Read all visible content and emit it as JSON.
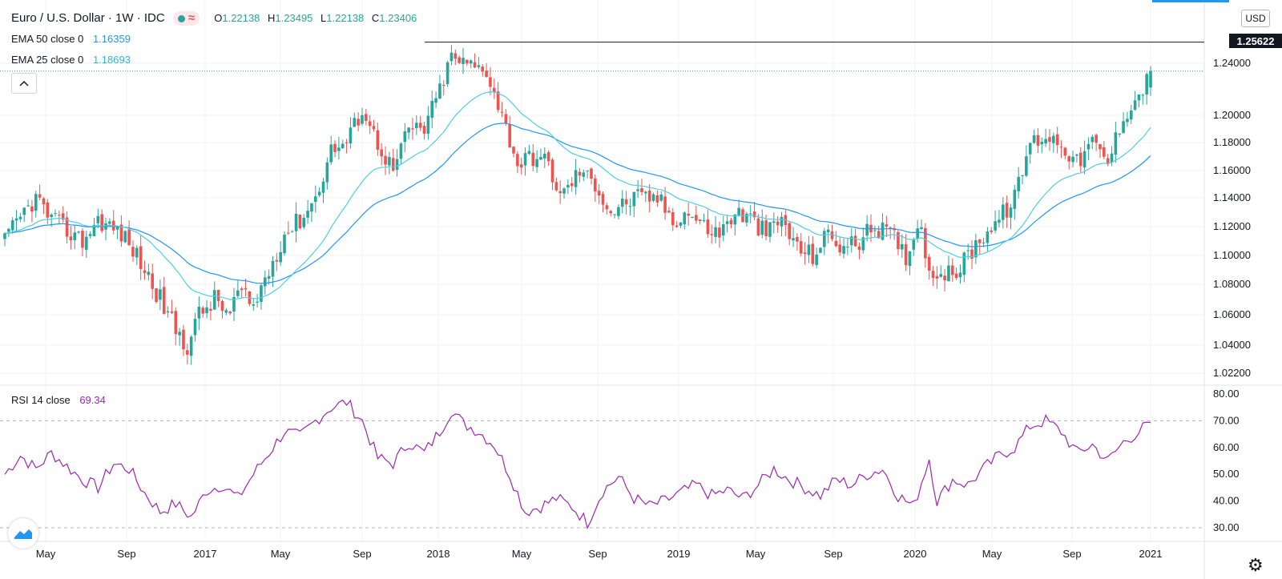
{
  "header": {
    "symbol_title": "Euro / U.S. Dollar · 1W · IDC",
    "ohlc": {
      "o_label": "O",
      "o": "1.22138",
      "h_label": "H",
      "h": "1.23495",
      "l_label": "L",
      "l": "1.22138",
      "c_label": "C",
      "c": "1.23406"
    },
    "wave_icon": "≈"
  },
  "indicators": {
    "ema50": {
      "label": "EMA 50 close 0",
      "value": "1.16359",
      "color": "#2196f3"
    },
    "ema25": {
      "label": "EMA 25 close 0",
      "value": "1.18693",
      "color": "#29b6d6"
    },
    "rsi": {
      "label": "RSI 14 close",
      "value": "69.34",
      "color": "#9c27b0"
    }
  },
  "currency_badge": "USD",
  "last_price_label": "1.25622",
  "colors": {
    "up": "#26a69a",
    "down": "#ef5350",
    "rsi": "#9c27b0",
    "ema50": "#2196f3",
    "ema25": "#4dd0e1"
  },
  "chart_data": [
    {
      "type": "candlestick",
      "title": "",
      "price_axis_ticks": [
        "1.24000",
        "1.20000",
        "1.18000",
        "1.16000",
        "1.14000",
        "1.12000",
        "1.10000",
        "1.08000",
        "1.06000",
        "1.04000",
        "1.02200"
      ],
      "time_axis_ticks": [
        "May",
        "Sep",
        "2017",
        "May",
        "Sep",
        "2018",
        "May",
        "Sep",
        "2019",
        "May",
        "Sep",
        "2020",
        "May",
        "Sep",
        "2021"
      ],
      "ylim": [
        1.015,
        1.265
      ],
      "horizontal_line": 1.25622,
      "current_price_line": 1.234,
      "close_anchors": [
        {
          "i": 0,
          "v": 1.11
        },
        {
          "i": 5,
          "v": 1.13
        },
        {
          "i": 8,
          "v": 1.14
        },
        {
          "i": 12,
          "v": 1.125
        },
        {
          "i": 20,
          "v": 1.11
        },
        {
          "i": 24,
          "v": 1.125
        },
        {
          "i": 30,
          "v": 1.115
        },
        {
          "i": 34,
          "v": 1.1
        },
        {
          "i": 40,
          "v": 1.07
        },
        {
          "i": 44,
          "v": 1.05
        },
        {
          "i": 47,
          "v": 1.04
        },
        {
          "i": 50,
          "v": 1.06
        },
        {
          "i": 54,
          "v": 1.07
        },
        {
          "i": 58,
          "v": 1.06
        },
        {
          "i": 60,
          "v": 1.075
        },
        {
          "i": 64,
          "v": 1.065
        },
        {
          "i": 68,
          "v": 1.09
        },
        {
          "i": 72,
          "v": 1.115
        },
        {
          "i": 76,
          "v": 1.125
        },
        {
          "i": 80,
          "v": 1.14
        },
        {
          "i": 84,
          "v": 1.175
        },
        {
          "i": 88,
          "v": 1.18
        },
        {
          "i": 92,
          "v": 1.205
        },
        {
          "i": 96,
          "v": 1.18
        },
        {
          "i": 100,
          "v": 1.16
        },
        {
          "i": 104,
          "v": 1.19
        },
        {
          "i": 108,
          "v": 1.19
        },
        {
          "i": 112,
          "v": 1.22
        },
        {
          "i": 115,
          "v": 1.245
        },
        {
          "i": 118,
          "v": 1.24
        },
        {
          "i": 124,
          "v": 1.235
        },
        {
          "i": 128,
          "v": 1.2
        },
        {
          "i": 132,
          "v": 1.165
        },
        {
          "i": 136,
          "v": 1.17
        },
        {
          "i": 140,
          "v": 1.165
        },
        {
          "i": 143,
          "v": 1.14
        },
        {
          "i": 148,
          "v": 1.16
        },
        {
          "i": 152,
          "v": 1.15
        },
        {
          "i": 156,
          "v": 1.13
        },
        {
          "i": 162,
          "v": 1.14
        },
        {
          "i": 168,
          "v": 1.14
        },
        {
          "i": 172,
          "v": 1.125
        },
        {
          "i": 176,
          "v": 1.13
        },
        {
          "i": 180,
          "v": 1.12
        },
        {
          "i": 184,
          "v": 1.115
        },
        {
          "i": 188,
          "v": 1.13
        },
        {
          "i": 192,
          "v": 1.125
        },
        {
          "i": 196,
          "v": 1.115
        },
        {
          "i": 200,
          "v": 1.125
        },
        {
          "i": 204,
          "v": 1.105
        },
        {
          "i": 208,
          "v": 1.1
        },
        {
          "i": 212,
          "v": 1.115
        },
        {
          "i": 216,
          "v": 1.105
        },
        {
          "i": 220,
          "v": 1.11
        },
        {
          "i": 224,
          "v": 1.12
        },
        {
          "i": 228,
          "v": 1.115
        },
        {
          "i": 232,
          "v": 1.1
        },
        {
          "i": 236,
          "v": 1.125
        },
        {
          "i": 238,
          "v": 1.085
        },
        {
          "i": 240,
          "v": 1.09
        },
        {
          "i": 244,
          "v": 1.085
        },
        {
          "i": 248,
          "v": 1.1
        },
        {
          "i": 252,
          "v": 1.115
        },
        {
          "i": 256,
          "v": 1.125
        },
        {
          "i": 260,
          "v": 1.14
        },
        {
          "i": 264,
          "v": 1.18
        },
        {
          "i": 268,
          "v": 1.185
        },
        {
          "i": 272,
          "v": 1.18
        },
        {
          "i": 276,
          "v": 1.165
        },
        {
          "i": 280,
          "v": 1.18
        },
        {
          "i": 284,
          "v": 1.165
        },
        {
          "i": 288,
          "v": 1.2
        },
        {
          "i": 292,
          "v": 1.215
        },
        {
          "i": 295,
          "v": 1.234
        }
      ],
      "bar_count": 296
    },
    {
      "type": "line",
      "title": "",
      "ylim": [
        25,
        82
      ],
      "y_ticks": [
        "80.00",
        "70.00",
        "60.00",
        "50.00",
        "40.00",
        "30.00"
      ],
      "bands": [
        70,
        30
      ],
      "rsi_anchors": [
        {
          "i": 0,
          "v": 50
        },
        {
          "i": 4,
          "v": 57
        },
        {
          "i": 8,
          "v": 52
        },
        {
          "i": 12,
          "v": 58
        },
        {
          "i": 16,
          "v": 53
        },
        {
          "i": 20,
          "v": 48
        },
        {
          "i": 24,
          "v": 45
        },
        {
          "i": 28,
          "v": 54
        },
        {
          "i": 32,
          "v": 52
        },
        {
          "i": 36,
          "v": 43
        },
        {
          "i": 40,
          "v": 36
        },
        {
          "i": 44,
          "v": 39
        },
        {
          "i": 48,
          "v": 34
        },
        {
          "i": 52,
          "v": 44
        },
        {
          "i": 56,
          "v": 46
        },
        {
          "i": 60,
          "v": 41
        },
        {
          "i": 64,
          "v": 50
        },
        {
          "i": 68,
          "v": 58
        },
        {
          "i": 72,
          "v": 66
        },
        {
          "i": 76,
          "v": 64
        },
        {
          "i": 80,
          "v": 70
        },
        {
          "i": 84,
          "v": 75
        },
        {
          "i": 88,
          "v": 77
        },
        {
          "i": 92,
          "v": 70
        },
        {
          "i": 96,
          "v": 56
        },
        {
          "i": 100,
          "v": 54
        },
        {
          "i": 104,
          "v": 62
        },
        {
          "i": 108,
          "v": 58
        },
        {
          "i": 112,
          "v": 66
        },
        {
          "i": 115,
          "v": 74
        },
        {
          "i": 118,
          "v": 69
        },
        {
          "i": 122,
          "v": 66
        },
        {
          "i": 126,
          "v": 61
        },
        {
          "i": 130,
          "v": 50
        },
        {
          "i": 134,
          "v": 36
        },
        {
          "i": 138,
          "v": 38
        },
        {
          "i": 142,
          "v": 41
        },
        {
          "i": 146,
          "v": 38
        },
        {
          "i": 150,
          "v": 32
        },
        {
          "i": 154,
          "v": 44
        },
        {
          "i": 158,
          "v": 49
        },
        {
          "i": 162,
          "v": 41
        },
        {
          "i": 166,
          "v": 38
        },
        {
          "i": 170,
          "v": 40
        },
        {
          "i": 174,
          "v": 43
        },
        {
          "i": 178,
          "v": 46
        },
        {
          "i": 182,
          "v": 42
        },
        {
          "i": 186,
          "v": 44
        },
        {
          "i": 190,
          "v": 41
        },
        {
          "i": 194,
          "v": 46
        },
        {
          "i": 198,
          "v": 52
        },
        {
          "i": 202,
          "v": 48
        },
        {
          "i": 206,
          "v": 45
        },
        {
          "i": 210,
          "v": 42
        },
        {
          "i": 214,
          "v": 48
        },
        {
          "i": 218,
          "v": 46
        },
        {
          "i": 222,
          "v": 50
        },
        {
          "i": 226,
          "v": 52
        },
        {
          "i": 230,
          "v": 42
        },
        {
          "i": 234,
          "v": 38
        },
        {
          "i": 238,
          "v": 56
        },
        {
          "i": 240,
          "v": 40
        },
        {
          "i": 244,
          "v": 48
        },
        {
          "i": 248,
          "v": 46
        },
        {
          "i": 252,
          "v": 52
        },
        {
          "i": 256,
          "v": 57
        },
        {
          "i": 260,
          "v": 60
        },
        {
          "i": 264,
          "v": 68
        },
        {
          "i": 268,
          "v": 70
        },
        {
          "i": 272,
          "v": 66
        },
        {
          "i": 276,
          "v": 58
        },
        {
          "i": 280,
          "v": 61
        },
        {
          "i": 284,
          "v": 55
        },
        {
          "i": 288,
          "v": 62
        },
        {
          "i": 292,
          "v": 66
        },
        {
          "i": 295,
          "v": 69.34
        }
      ]
    }
  ]
}
